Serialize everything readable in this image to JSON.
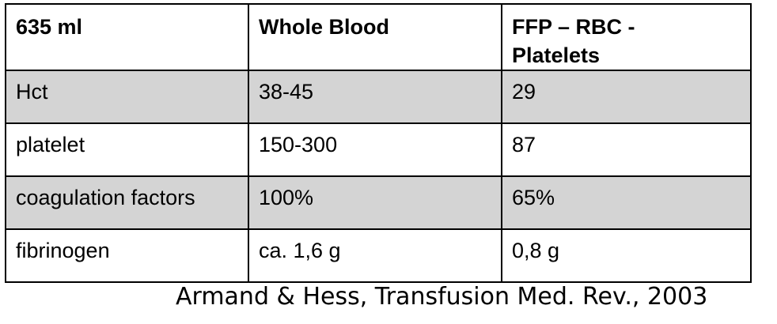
{
  "table": {
    "header": [
      "635 ml",
      "Whole Blood",
      "FFP – RBC -\nPlatelets"
    ],
    "rows": [
      [
        "Hct",
        "38-45",
        "29"
      ],
      [
        "platelet",
        "150-300",
        "87"
      ],
      [
        "coagulation factors",
        "100%",
        "65%"
      ],
      [
        "fibrinogen",
        "ca. 1,6 g",
        "0,8 g"
      ]
    ],
    "shaded_row_color": "#d4d4d4"
  },
  "citation": "Armand & Hess, Transfusion Med. Rev., 2003"
}
